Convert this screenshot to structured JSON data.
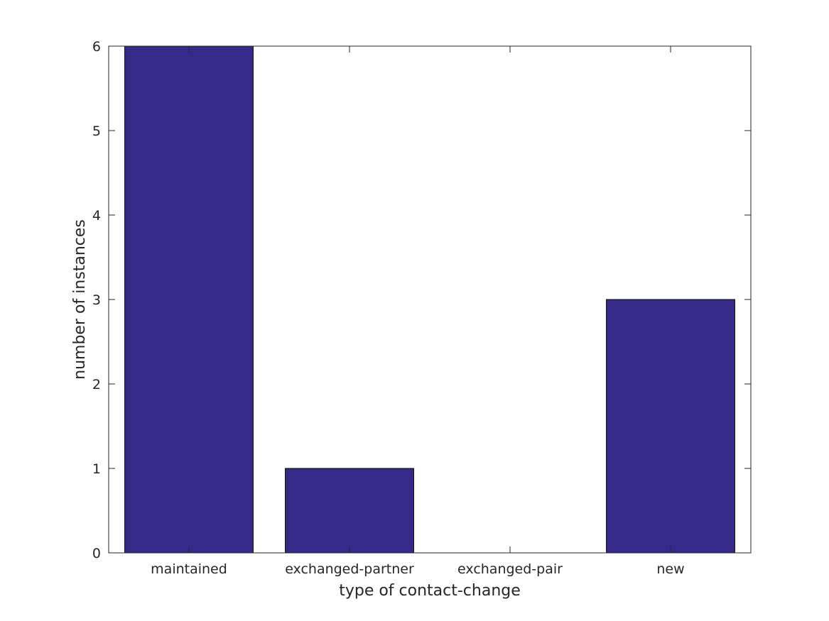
{
  "chart_data": {
    "type": "bar",
    "categories": [
      "maintained",
      "exchanged-partner",
      "exchanged-pair",
      "new"
    ],
    "values": [
      6,
      1,
      0,
      3
    ],
    "title": "",
    "xlabel": "type of contact-change",
    "ylabel": "number of instances",
    "ylim": [
      0,
      6
    ],
    "yticks": [
      "0",
      "1",
      "2",
      "3",
      "4",
      "5",
      "6"
    ],
    "grid": false,
    "legend": "none",
    "bar_color": "#352a87",
    "axis_color": "#262626"
  }
}
